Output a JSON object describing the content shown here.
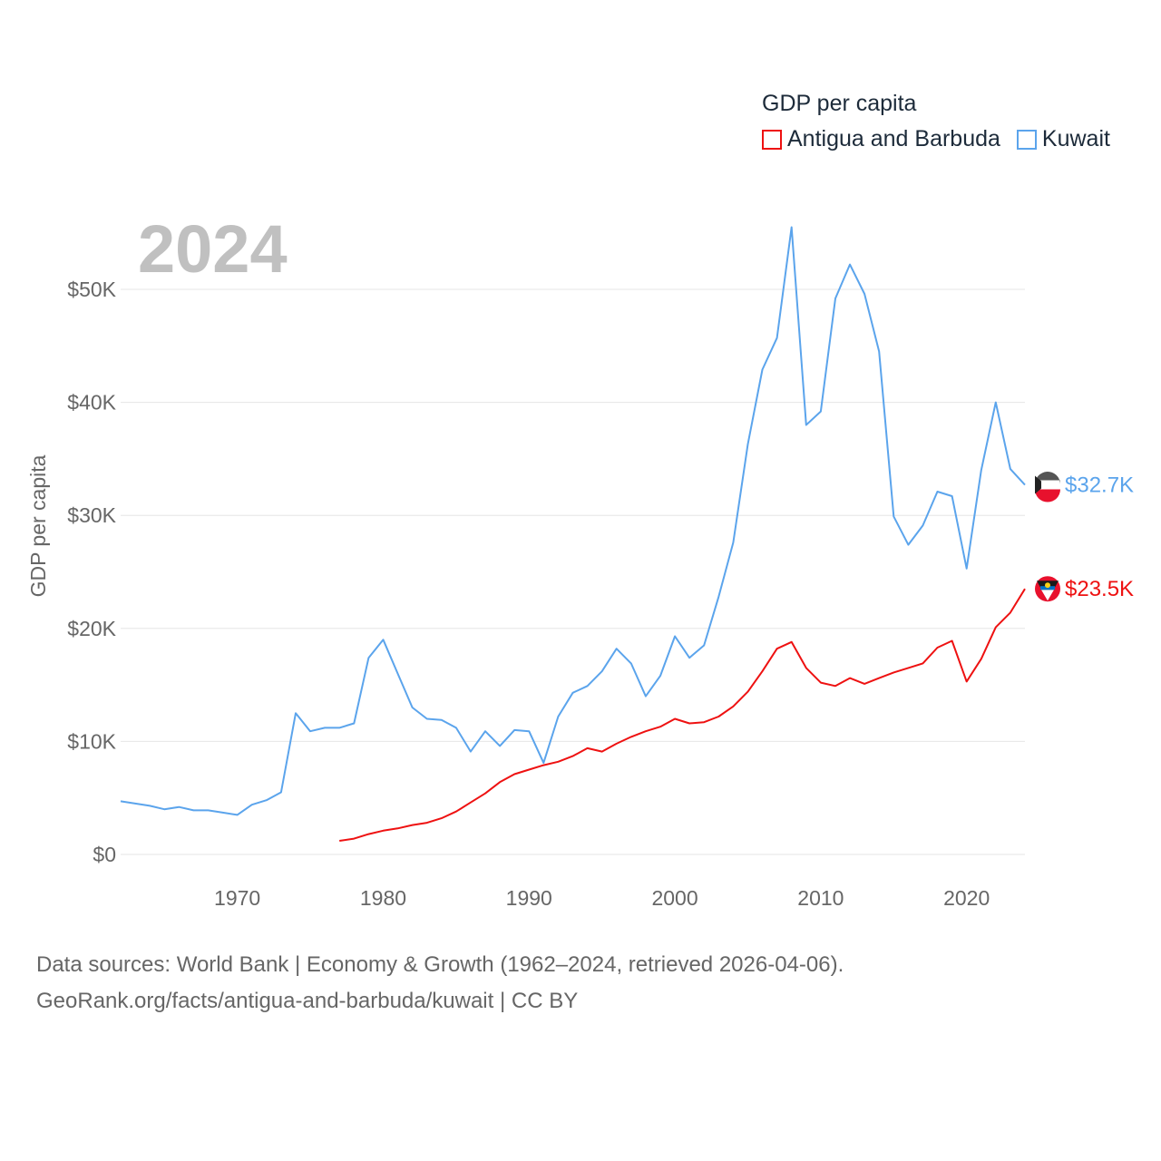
{
  "chart_data": {
    "type": "line",
    "title": "GDP per capita",
    "year_label": "2024",
    "ylabel": "GDP per capita",
    "xlabel": "",
    "xlim": [
      1962,
      2024
    ],
    "ylim": [
      0,
      56000
    ],
    "x_ticks": [
      1970,
      1980,
      1990,
      2000,
      2010,
      2020
    ],
    "y_ticks": [
      0,
      10000,
      20000,
      30000,
      40000,
      50000
    ],
    "y_tick_labels": [
      "$0",
      "$10K",
      "$20K",
      "$30K",
      "$40K",
      "$50K"
    ],
    "grid": true,
    "legend_position": "top-right",
    "series": [
      {
        "name": "Antigua and Barbuda",
        "color": "#ee1111",
        "end_label": "$23.5K",
        "start_year": 1977,
        "values": [
          1.2,
          1.4,
          1.8,
          2.1,
          2.3,
          2.6,
          2.8,
          3.2,
          3.8,
          4.6,
          5.4,
          6.4,
          7.1,
          7.5,
          7.9,
          8.2,
          8.7,
          9.4,
          9.1,
          9.8,
          10.4,
          10.9,
          11.3,
          12.0,
          11.6,
          11.7,
          12.2,
          13.1,
          14.4,
          16.2,
          18.2,
          18.8,
          16.5,
          15.2,
          14.9,
          15.6,
          15.1,
          15.6,
          16.1,
          16.5,
          16.9,
          18.3,
          18.9,
          15.3,
          17.3,
          20.1,
          21.4,
          23.5
        ]
      },
      {
        "name": "Kuwait",
        "color": "#5ba4ec",
        "end_label": "$32.7K",
        "start_year": 1962,
        "values": [
          4.7,
          4.5,
          4.3,
          4.0,
          4.2,
          3.9,
          3.9,
          3.7,
          3.5,
          4.4,
          4.8,
          5.5,
          12.5,
          10.9,
          11.2,
          11.2,
          11.6,
          17.4,
          19.0,
          16.0,
          13.0,
          12.0,
          11.9,
          11.2,
          9.1,
          10.9,
          9.6,
          11.0,
          10.9,
          8.1,
          12.2,
          14.3,
          14.9,
          16.2,
          18.2,
          16.9,
          14.0,
          15.8,
          19.3,
          17.4,
          18.5,
          22.8,
          27.6,
          36.3,
          42.9,
          45.7,
          55.5,
          38.0,
          39.2,
          49.2,
          52.2,
          49.6,
          44.5,
          29.9,
          27.4,
          29.1,
          32.1,
          31.7,
          25.3,
          34.0,
          40.0,
          34.1,
          32.7
        ]
      }
    ],
    "value_unit": "thousand USD"
  },
  "source": {
    "line1": "Data sources: World Bank | Economy & Growth (1962–2024, retrieved 2026-04-06).",
    "line2": "GeoRank.org/facts/antigua-and-barbuda/kuwait | CC BY"
  }
}
